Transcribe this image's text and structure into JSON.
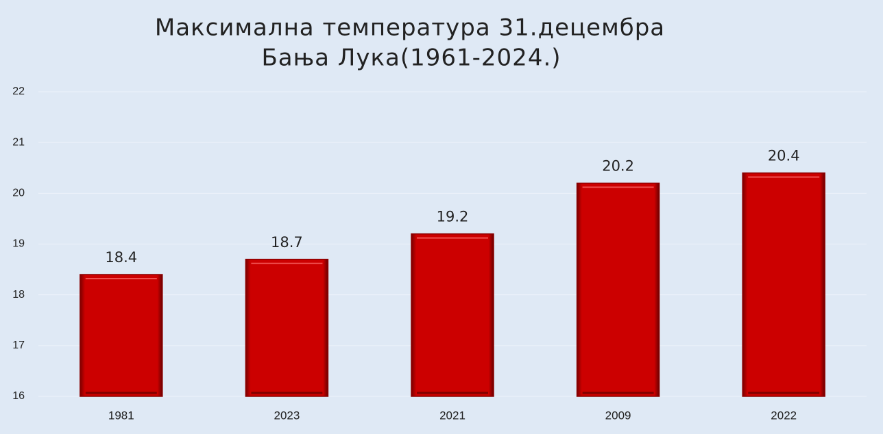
{
  "chart_data": {
    "type": "bar",
    "title": [
      "Максимална температура 31.децембра",
      "Бања Лука(1961-2024.)"
    ],
    "categories": [
      "1981",
      "2023",
      "2021",
      "2009",
      "2022"
    ],
    "values": [
      18.4,
      18.7,
      19.2,
      20.2,
      20.4
    ],
    "color": "#cc0000",
    "ylim": [
      16,
      22
    ],
    "yticks": [
      16,
      17,
      18,
      19,
      20,
      21,
      22
    ],
    "grid": true
  }
}
